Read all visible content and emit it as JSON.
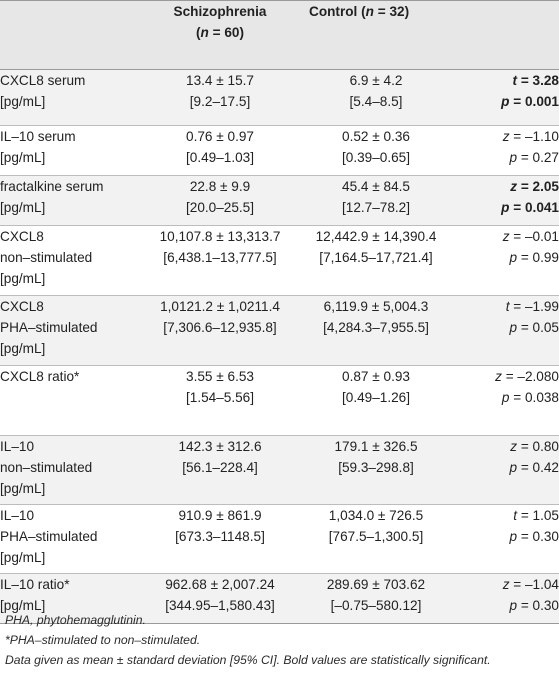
{
  "header": {
    "col1": "",
    "schizo_line1": "Schizophrenia",
    "schizo_line2_open": "(",
    "schizo_n": "n",
    "schizo_line2_rest": " = 60)",
    "control_text": "Control (",
    "control_n": "n",
    "control_rest": " = 32)",
    "col4": ""
  },
  "rows": [
    {
      "label": [
        "CXCL8 serum",
        "[pg/mL]"
      ],
      "schizo": [
        "13.4 ± 15.7",
        "[9.2–17.5]"
      ],
      "control": [
        "6.9 ± 4.2",
        "[5.4–8.5]"
      ],
      "stat": [
        [
          "t",
          " = 3.28"
        ],
        [
          "p",
          " = 0.001"
        ]
      ]
    },
    {
      "label": [
        "IL–10 serum",
        "[pg/mL]"
      ],
      "schizo": [
        "0.76 ± 0.97",
        "[0.49–1.03]"
      ],
      "control": [
        "0.52 ± 0.36",
        "[0.39–0.65]"
      ],
      "stat": [
        [
          "z",
          " = –1.10"
        ],
        [
          "p",
          " = 0.27"
        ]
      ]
    },
    {
      "label": [
        "fractalkine serum",
        "[pg/mL]"
      ],
      "schizo": [
        "22.8 ± 9.9",
        "[20.0–25.5]"
      ],
      "control": [
        "45.4 ± 84.5",
        "[12.7–78.2]"
      ],
      "stat": [
        [
          "z",
          " = 2.05"
        ],
        [
          "p",
          " = 0.041"
        ]
      ]
    },
    {
      "label": [
        "CXCL8",
        "non–stimulated",
        "[pg/mL]"
      ],
      "schizo": [
        "10,107.8 ± 13,313.7",
        "[6,438.1–13,777.5]"
      ],
      "control": [
        "12,442.9 ± 14,390.4",
        "[7,164.5–17,721.4]"
      ],
      "stat": [
        [
          "z",
          " = –0.01"
        ],
        [
          "p",
          " = 0.99"
        ]
      ]
    },
    {
      "label": [
        "CXCL8",
        "PHA–stimulated",
        "[pg/mL]"
      ],
      "schizo": [
        "1,0121.2 ± 1,0211.4",
        "[7,306.6–12,935.8]"
      ],
      "control": [
        "6,119.9 ± 5,004.3",
        "[4,284.3–7,955.5]"
      ],
      "stat": [
        [
          "t",
          " = –1.99"
        ],
        [
          "p",
          " = 0.05"
        ]
      ]
    },
    {
      "label": [
        "CXCL8 ratio*"
      ],
      "schizo": [
        "3.55 ± 6.53",
        "[1.54–5.56]"
      ],
      "control": [
        "0.87 ± 0.93",
        "[0.49–1.26]"
      ],
      "stat": [
        [
          "z",
          " = –2.080"
        ],
        [
          "p",
          " = 0.038"
        ]
      ]
    },
    {
      "label": [
        "IL–10",
        "non–stimulated",
        "[pg/mL]"
      ],
      "schizo": [
        "142.3 ± 312.6",
        "[56.1–228.4]"
      ],
      "control": [
        "179.1 ± 326.5",
        "[59.3–298.8]"
      ],
      "stat": [
        [
          "z",
          " = 0.80"
        ],
        [
          "p",
          " = 0.42"
        ]
      ]
    },
    {
      "label": [
        "IL–10",
        "PHA–stimulated",
        "[pg/mL]"
      ],
      "schizo": [
        "910.9 ± 861.9",
        "[673.3–1148.5]"
      ],
      "control": [
        "1,034.0 ± 726.5",
        "[767.5–1,300.5]"
      ],
      "stat": [
        [
          "t",
          " = 1.05"
        ],
        [
          "p",
          " = 0.30"
        ]
      ]
    },
    {
      "label": [
        "IL–10 ratio*",
        "[pg/mL]"
      ],
      "schizo": [
        "962.68 ± 2,007.24",
        "[344.95–1,580.43]"
      ],
      "control": [
        "289.69 ± 703.62",
        "[–0.75–580.12]"
      ],
      "stat": [
        [
          "z",
          " = –1.04"
        ],
        [
          "p",
          " = 0.30"
        ]
      ]
    }
  ],
  "footnotes": [
    "PHA, phytohemagglutinin.",
    "*PHA–stimulated to non–stimulated.",
    "Data given as mean ± standard deviation [95% CI]. Bold values are statistically significant."
  ]
}
